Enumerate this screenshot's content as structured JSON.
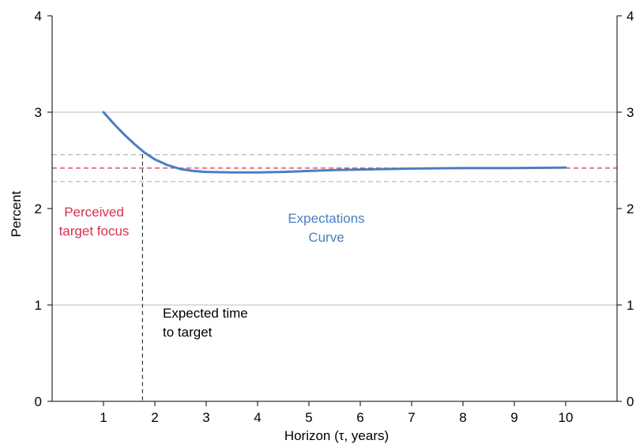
{
  "chart_data": {
    "type": "line",
    "xlabel": "Horizon (τ, years)",
    "ylabel": "Percent",
    "xlim": [
      0,
      11
    ],
    "ylim": [
      0,
      4
    ],
    "x_ticks": [
      1,
      2,
      3,
      4,
      5,
      6,
      7,
      8,
      9,
      10
    ],
    "y_ticks": [
      0,
      1,
      2,
      3,
      4
    ],
    "y_gridlines": [
      1,
      3
    ],
    "grid": "horizontal",
    "series": [
      {
        "color": "#4a7fc1",
        "x": [
          1.0,
          1.2,
          1.4,
          1.6,
          1.8,
          2.0,
          2.25,
          2.5,
          2.75,
          3.0,
          3.5,
          4.0,
          4.5,
          5.0,
          5.5,
          6.0,
          7.0,
          8.0,
          9.0,
          10.0
        ],
        "y": [
          3.0,
          2.88,
          2.77,
          2.67,
          2.58,
          2.51,
          2.45,
          2.41,
          2.39,
          2.38,
          2.375,
          2.375,
          2.38,
          2.39,
          2.4,
          2.405,
          2.415,
          2.42,
          2.42,
          2.425
        ]
      }
    ],
    "reference_lines": {
      "perceived_target": {
        "y": 2.42,
        "color": "#d6304e",
        "style": "dashed"
      },
      "upper_band": {
        "y": 2.56,
        "color": "#bbbbbb",
        "style": "dashed"
      },
      "lower_band": {
        "y": 2.28,
        "color": "#bbbbbb",
        "style": "dashed"
      },
      "expected_time_to_target": {
        "x": 1.76,
        "y_from": 0,
        "y_to": 2.56,
        "color": "#333333",
        "style": "dashed"
      }
    },
    "annotations": {
      "perceived_target_line1": "Perceived",
      "perceived_target_line2": "target focus",
      "expectations_line1": "Expectations",
      "expectations_line2": "Curve",
      "time_to_target_line1": "Expected time",
      "time_to_target_line2": "to target"
    }
  }
}
